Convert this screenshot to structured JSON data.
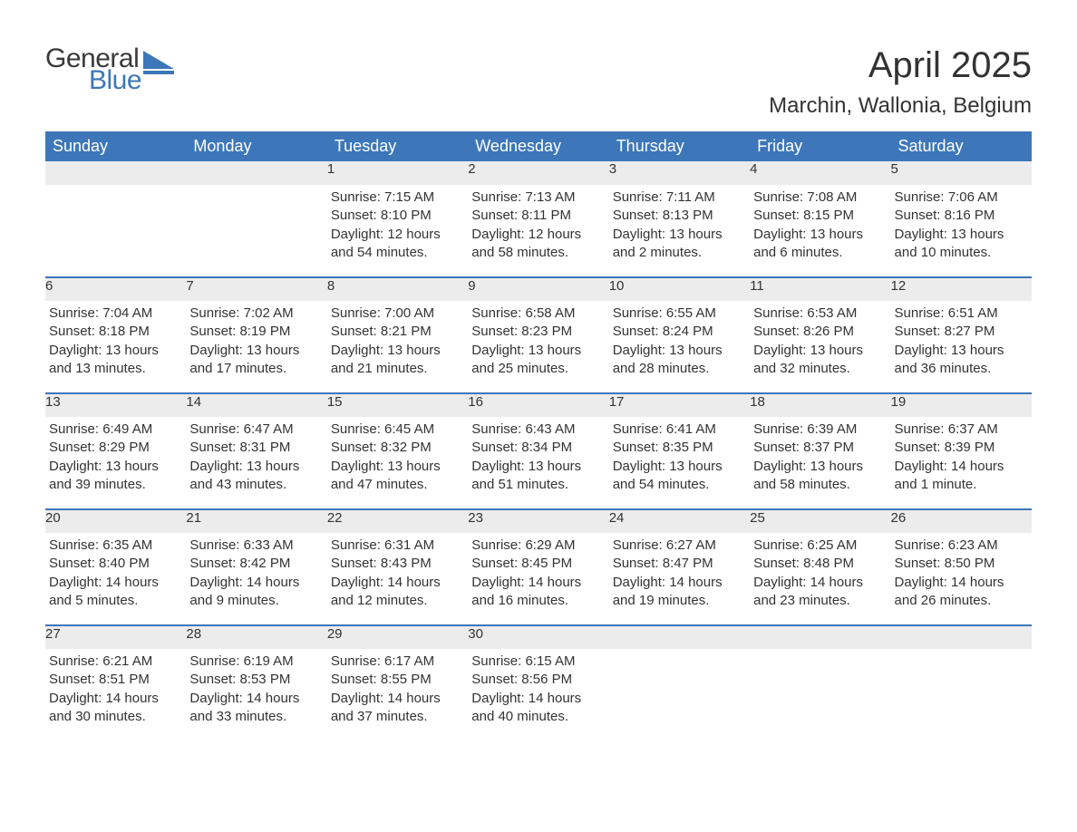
{
  "brand": {
    "word1": "General",
    "word2": "Blue",
    "logo_color": "#3d77b9",
    "text_color": "#3a3a3a"
  },
  "title": "April 2025",
  "location": "Marchin, Wallonia, Belgium",
  "colors": {
    "header_bg": "#3d77b9",
    "header_text": "#ffffff",
    "row_separator": "#3d77b9",
    "daynum_bg": "#ececec",
    "daynum_text": "#555555",
    "body_text": "#333333",
    "page_bg": "#ffffff"
  },
  "typography": {
    "title_fontsize": 40,
    "location_fontsize": 24,
    "header_fontsize": 18,
    "daynum_fontsize": 18,
    "body_fontsize": 15,
    "font_family": "Arial"
  },
  "layout": {
    "columns": 7,
    "rows": 5,
    "start_day_index": 2
  },
  "weekday_headers": [
    "Sunday",
    "Monday",
    "Tuesday",
    "Wednesday",
    "Thursday",
    "Friday",
    "Saturday"
  ],
  "days": [
    {
      "n": "1",
      "sunrise": "7:15 AM",
      "sunset": "8:10 PM",
      "daylight": "12 hours and 54 minutes."
    },
    {
      "n": "2",
      "sunrise": "7:13 AM",
      "sunset": "8:11 PM",
      "daylight": "12 hours and 58 minutes."
    },
    {
      "n": "3",
      "sunrise": "7:11 AM",
      "sunset": "8:13 PM",
      "daylight": "13 hours and 2 minutes."
    },
    {
      "n": "4",
      "sunrise": "7:08 AM",
      "sunset": "8:15 PM",
      "daylight": "13 hours and 6 minutes."
    },
    {
      "n": "5",
      "sunrise": "7:06 AM",
      "sunset": "8:16 PM",
      "daylight": "13 hours and 10 minutes."
    },
    {
      "n": "6",
      "sunrise": "7:04 AM",
      "sunset": "8:18 PM",
      "daylight": "13 hours and 13 minutes."
    },
    {
      "n": "7",
      "sunrise": "7:02 AM",
      "sunset": "8:19 PM",
      "daylight": "13 hours and 17 minutes."
    },
    {
      "n": "8",
      "sunrise": "7:00 AM",
      "sunset": "8:21 PM",
      "daylight": "13 hours and 21 minutes."
    },
    {
      "n": "9",
      "sunrise": "6:58 AM",
      "sunset": "8:23 PM",
      "daylight": "13 hours and 25 minutes."
    },
    {
      "n": "10",
      "sunrise": "6:55 AM",
      "sunset": "8:24 PM",
      "daylight": "13 hours and 28 minutes."
    },
    {
      "n": "11",
      "sunrise": "6:53 AM",
      "sunset": "8:26 PM",
      "daylight": "13 hours and 32 minutes."
    },
    {
      "n": "12",
      "sunrise": "6:51 AM",
      "sunset": "8:27 PM",
      "daylight": "13 hours and 36 minutes."
    },
    {
      "n": "13",
      "sunrise": "6:49 AM",
      "sunset": "8:29 PM",
      "daylight": "13 hours and 39 minutes."
    },
    {
      "n": "14",
      "sunrise": "6:47 AM",
      "sunset": "8:31 PM",
      "daylight": "13 hours and 43 minutes."
    },
    {
      "n": "15",
      "sunrise": "6:45 AM",
      "sunset": "8:32 PM",
      "daylight": "13 hours and 47 minutes."
    },
    {
      "n": "16",
      "sunrise": "6:43 AM",
      "sunset": "8:34 PM",
      "daylight": "13 hours and 51 minutes."
    },
    {
      "n": "17",
      "sunrise": "6:41 AM",
      "sunset": "8:35 PM",
      "daylight": "13 hours and 54 minutes."
    },
    {
      "n": "18",
      "sunrise": "6:39 AM",
      "sunset": "8:37 PM",
      "daylight": "13 hours and 58 minutes."
    },
    {
      "n": "19",
      "sunrise": "6:37 AM",
      "sunset": "8:39 PM",
      "daylight": "14 hours and 1 minute."
    },
    {
      "n": "20",
      "sunrise": "6:35 AM",
      "sunset": "8:40 PM",
      "daylight": "14 hours and 5 minutes."
    },
    {
      "n": "21",
      "sunrise": "6:33 AM",
      "sunset": "8:42 PM",
      "daylight": "14 hours and 9 minutes."
    },
    {
      "n": "22",
      "sunrise": "6:31 AM",
      "sunset": "8:43 PM",
      "daylight": "14 hours and 12 minutes."
    },
    {
      "n": "23",
      "sunrise": "6:29 AM",
      "sunset": "8:45 PM",
      "daylight": "14 hours and 16 minutes."
    },
    {
      "n": "24",
      "sunrise": "6:27 AM",
      "sunset": "8:47 PM",
      "daylight": "14 hours and 19 minutes."
    },
    {
      "n": "25",
      "sunrise": "6:25 AM",
      "sunset": "8:48 PM",
      "daylight": "14 hours and 23 minutes."
    },
    {
      "n": "26",
      "sunrise": "6:23 AM",
      "sunset": "8:50 PM",
      "daylight": "14 hours and 26 minutes."
    },
    {
      "n": "27",
      "sunrise": "6:21 AM",
      "sunset": "8:51 PM",
      "daylight": "14 hours and 30 minutes."
    },
    {
      "n": "28",
      "sunrise": "6:19 AM",
      "sunset": "8:53 PM",
      "daylight": "14 hours and 33 minutes."
    },
    {
      "n": "29",
      "sunrise": "6:17 AM",
      "sunset": "8:55 PM",
      "daylight": "14 hours and 37 minutes."
    },
    {
      "n": "30",
      "sunrise": "6:15 AM",
      "sunset": "8:56 PM",
      "daylight": "14 hours and 40 minutes."
    }
  ],
  "labels": {
    "sunrise": "Sunrise:",
    "sunset": "Sunset:",
    "daylight": "Daylight:"
  }
}
